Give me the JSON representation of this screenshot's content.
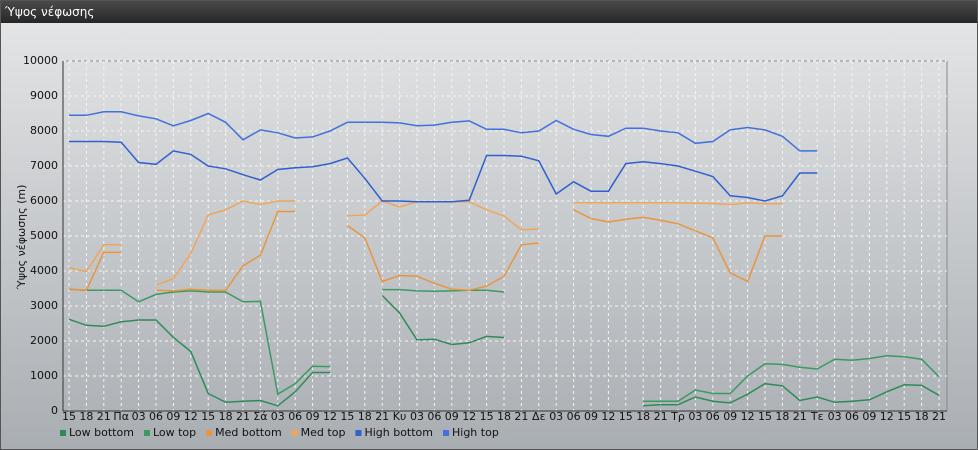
{
  "chart_data": {
    "type": "line",
    "title": "Ύψος νέφωσης",
    "y_label": "Ύψος νέφωσης (m)",
    "categories": [
      "15",
      "18",
      "21",
      "Πα",
      "03",
      "06",
      "09",
      "12",
      "15",
      "18",
      "21",
      "Σά",
      "03",
      "06",
      "09",
      "12",
      "15",
      "18",
      "21",
      "Κυ",
      "03",
      "06",
      "09",
      "12",
      "15",
      "18",
      "21",
      "Δε",
      "03",
      "06",
      "09",
      "12",
      "15",
      "18",
      "21",
      "Τρ",
      "03",
      "06",
      "09",
      "12",
      "15",
      "18",
      "21",
      "Τε",
      "03",
      "06",
      "09",
      "12",
      "15",
      "18",
      "21"
    ],
    "ylim": [
      0,
      10000
    ],
    "yticks": [
      0,
      1000,
      2000,
      3000,
      4000,
      5000,
      6000,
      7000,
      8000,
      9000,
      10000
    ],
    "grid": true,
    "legend": "bottom-left",
    "series": [
      {
        "name": "Low bottom",
        "color": "#2e8b57",
        "values": [
          2620,
          2450,
          2420,
          2550,
          2600,
          2600,
          2100,
          1700,
          500,
          250,
          280,
          300,
          150,
          550,
          1100,
          1100,
          null,
          null,
          3300,
          2800,
          2030,
          2050,
          1900,
          1950,
          2130,
          2100,
          null,
          null,
          null,
          null,
          null,
          null,
          null,
          150,
          180,
          180,
          400,
          280,
          230,
          480,
          780,
          720,
          300,
          400,
          250,
          280,
          320,
          550,
          750,
          730,
          450
        ]
      },
      {
        "name": "Low top",
        "color": "#3a9a62",
        "values": [
          3480,
          3450,
          3450,
          3450,
          3120,
          3330,
          3400,
          3430,
          3400,
          3400,
          3120,
          3130,
          480,
          780,
          1280,
          1270,
          null,
          null,
          3470,
          3470,
          3430,
          3420,
          3430,
          3450,
          3450,
          3400,
          null,
          null,
          null,
          null,
          null,
          null,
          null,
          280,
          280,
          280,
          600,
          500,
          500,
          1000,
          1350,
          1330,
          1250,
          1200,
          1480,
          1450,
          1500,
          1580,
          1550,
          1480,
          980
        ]
      },
      {
        "name": "Med bottom",
        "color": "#e8953e",
        "values": [
          3480,
          3450,
          4530,
          4530,
          null,
          3450,
          3430,
          3480,
          3450,
          3450,
          4150,
          4450,
          5700,
          5700,
          null,
          null,
          5300,
          4950,
          3700,
          3870,
          3850,
          3650,
          3480,
          3450,
          3570,
          3850,
          4750,
          4800,
          null,
          5750,
          5500,
          5400,
          5480,
          5530,
          5450,
          5350,
          5150,
          4950,
          3950,
          3700,
          5000,
          5000,
          null,
          null,
          null,
          null,
          null,
          null,
          null,
          null,
          null
        ]
      },
      {
        "name": "Med top",
        "color": "#f0a558",
        "values": [
          4100,
          3980,
          4750,
          4750,
          null,
          3600,
          3780,
          4500,
          5600,
          5750,
          6000,
          5900,
          6000,
          6000,
          null,
          null,
          5580,
          5600,
          6000,
          5830,
          5980,
          5980,
          5980,
          5980,
          5750,
          5570,
          5180,
          5200,
          null,
          5950,
          5950,
          5950,
          5950,
          5950,
          5950,
          5950,
          5940,
          5930,
          5900,
          5950,
          5920,
          5920,
          null,
          null,
          null,
          null,
          null,
          null,
          null,
          null,
          null
        ]
      },
      {
        "name": "High bottom",
        "color": "#2f5fd0",
        "values": [
          7700,
          7700,
          7700,
          7680,
          7100,
          7050,
          7430,
          7330,
          7000,
          6920,
          6750,
          6600,
          6900,
          6950,
          6980,
          7070,
          7230,
          6650,
          6000,
          6000,
          5980,
          5980,
          5980,
          6020,
          7300,
          7300,
          7280,
          7150,
          6200,
          6550,
          6280,
          6280,
          7070,
          7120,
          7070,
          7000,
          6850,
          6700,
          6150,
          6100,
          6000,
          6150,
          6800,
          6800,
          null,
          null,
          null,
          null,
          null,
          null,
          null
        ]
      },
      {
        "name": "High top",
        "color": "#4270dd",
        "values": [
          8450,
          8450,
          8550,
          8550,
          8430,
          8350,
          8150,
          8300,
          8500,
          8250,
          7750,
          8030,
          7950,
          7800,
          7830,
          8000,
          8250,
          8250,
          8250,
          8230,
          8150,
          8170,
          8250,
          8290,
          8050,
          8050,
          7950,
          8000,
          8300,
          8050,
          7900,
          7850,
          8080,
          8080,
          8000,
          7950,
          7650,
          7700,
          8030,
          8100,
          8030,
          7850,
          7430,
          7430,
          null,
          null,
          null,
          null,
          null,
          null,
          null
        ]
      }
    ]
  }
}
